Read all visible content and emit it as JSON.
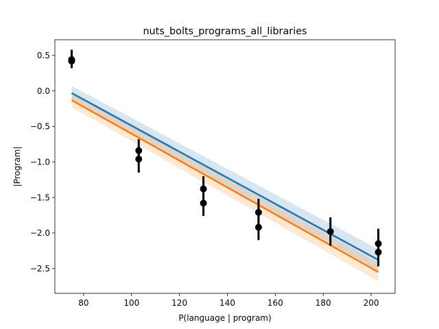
{
  "chart_data": {
    "type": "scatter",
    "title": "nuts_bolts_programs_all_libraries",
    "xlabel": "P(language | program)",
    "ylabel": "|Program|",
    "xlim": [
      68,
      210
    ],
    "ylim": [
      -2.85,
      0.72
    ],
    "xticks": [
      80,
      100,
      120,
      140,
      160,
      180,
      200
    ],
    "yticks": [
      0.5,
      0.0,
      -0.5,
      -1.0,
      -1.5,
      -2.0,
      -2.5
    ],
    "xtick_labels": [
      "80",
      "100",
      "120",
      "140",
      "160",
      "180",
      "200"
    ],
    "ytick_labels": [
      "0.5",
      "0.0",
      "−0.5",
      "−1.0",
      "−1.5",
      "−2.0",
      "−2.5"
    ],
    "grid": false,
    "points": [
      {
        "x": 75,
        "y": 0.44,
        "err_low": 0.32,
        "err_high": 0.58
      },
      {
        "x": 75,
        "y": 0.42,
        "err_low": 0.32,
        "err_high": 0.55
      },
      {
        "x": 103,
        "y": -0.84,
        "err_low": -1.0,
        "err_high": -0.68
      },
      {
        "x": 103,
        "y": -0.96,
        "err_low": -1.15,
        "err_high": -0.78
      },
      {
        "x": 130,
        "y": -1.38,
        "err_low": -1.55,
        "err_high": -1.2
      },
      {
        "x": 130,
        "y": -1.58,
        "err_low": -1.76,
        "err_high": -1.4
      },
      {
        "x": 153,
        "y": -1.71,
        "err_low": -1.9,
        "err_high": -1.52
      },
      {
        "x": 153,
        "y": -1.92,
        "err_low": -2.1,
        "err_high": -1.74
      },
      {
        "x": 183,
        "y": -1.98,
        "err_low": -2.18,
        "err_high": -1.78
      },
      {
        "x": 203,
        "y": -2.15,
        "err_low": -2.35,
        "err_high": -1.94
      },
      {
        "x": 203,
        "y": -2.27,
        "err_low": -2.47,
        "err_high": -2.07
      }
    ],
    "series": [
      {
        "x": [
          75,
          203
        ],
        "y": [
          -0.03,
          -2.38
        ],
        "band_low": [
          -0.13,
          -2.53
        ],
        "band_high": [
          0.07,
          -2.23
        ],
        "color": "#1f77b4",
        "band_color": "#1f77b4"
      },
      {
        "x": [
          75,
          203
        ],
        "y": [
          -0.13,
          -2.55
        ],
        "band_low": [
          -0.23,
          -2.68
        ],
        "band_high": [
          -0.03,
          -2.42
        ],
        "color": "#ff7f0e",
        "band_color": "#ff7f0e"
      }
    ],
    "marker_color": "#000000"
  }
}
